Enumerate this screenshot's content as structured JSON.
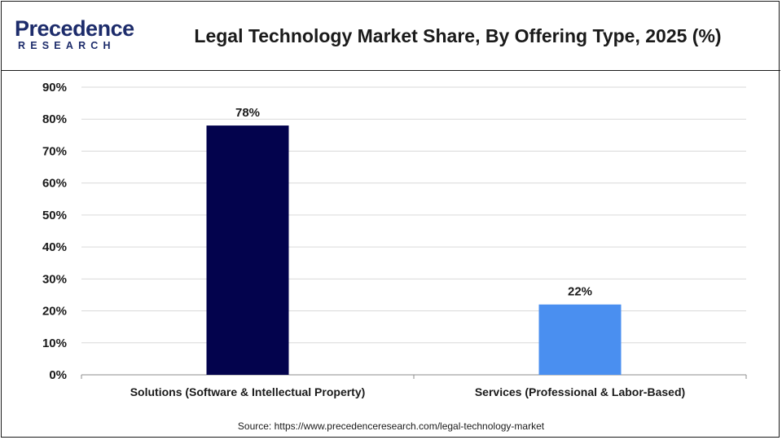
{
  "brand": {
    "name": "Precedence",
    "sub": "RESEARCH",
    "color": "#1d2c6b"
  },
  "chart_data": {
    "type": "bar",
    "title": "Legal Technology Market  Share, By Offering Type, 2025 (%)",
    "categories": [
      "Solutions (Software & Intellectual Property)",
      "Services (Professional & Labor-Based)"
    ],
    "values": [
      78,
      22
    ],
    "data_labels": [
      "78%",
      "22%"
    ],
    "colors": [
      "#03034d",
      "#4a8ff0"
    ],
    "ylim": [
      0,
      90
    ],
    "yticks": [
      0,
      10,
      20,
      30,
      40,
      50,
      60,
      70,
      80,
      90
    ],
    "ytick_labels": [
      "0%",
      "10%",
      "20%",
      "30%",
      "40%",
      "50%",
      "60%",
      "70%",
      "80%",
      "90%"
    ],
    "grid": true,
    "legend": "none"
  },
  "source": "Source: https://www.precedenceresearch.com/legal-technology-market"
}
